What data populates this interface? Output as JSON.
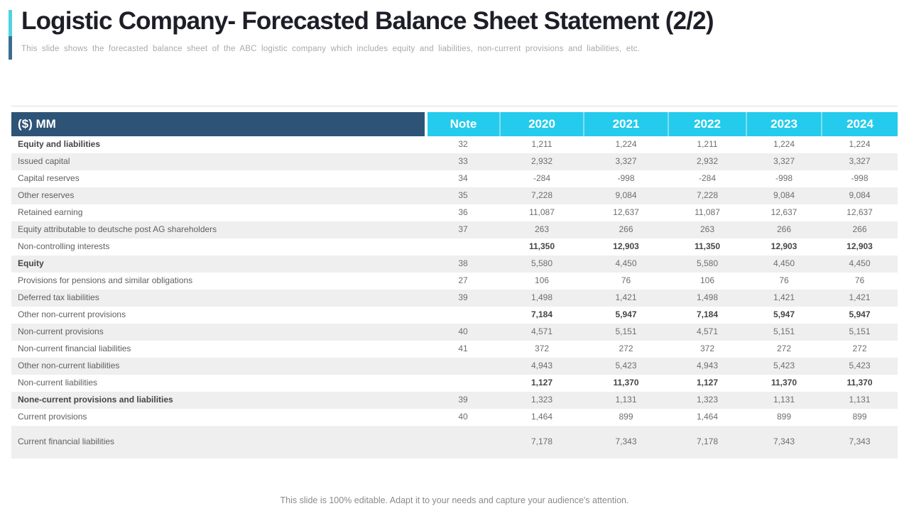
{
  "slide": {
    "title": "Logistic Company- Forecasted Balance Sheet Statement (2/2)",
    "subtitle": "This slide shows the forecasted  balance  sheet of the ABC logistic  company  which  includes equity and  liabilities, non-current  provisions  and liabilities, etc.",
    "footer": "This slide is 100% editable. Adapt it to your needs and capture your audience's attention."
  },
  "colors": {
    "header_navy": "#2d5477",
    "header_cyan": "#25cbec",
    "row_stripe": "#efefef",
    "accent_bar_top": "#4fd4de",
    "accent_bar_bottom": "#3a6e90"
  },
  "table": {
    "unit_label": "($) MM",
    "columns": [
      "Note",
      "2020",
      "2021",
      "2022",
      "2023",
      "2024"
    ],
    "rows": [
      {
        "label": "Equity and liabilities",
        "label_bold": true,
        "note": "32",
        "values": [
          "1,211",
          "1,224",
          "1,211",
          "1,224",
          "1,224"
        ]
      },
      {
        "label": "Issued capital",
        "note": "33",
        "values": [
          "2,932",
          "3,327",
          "2,932",
          "3,327",
          "3,327"
        ]
      },
      {
        "label": "Capital reserves",
        "note": "34",
        "values": [
          "-284",
          "-998",
          "-284",
          "-998",
          "-998"
        ]
      },
      {
        "label": "Other reserves",
        "note": "35",
        "values": [
          "7,228",
          "9,084",
          "7,228",
          "9,084",
          "9,084"
        ]
      },
      {
        "label": "Retained earning",
        "note": "36",
        "values": [
          "11,087",
          "12,637",
          "11,087",
          "12,637",
          "12,637"
        ]
      },
      {
        "label": "Equity attributable to deutsche post AG shareholders",
        "note": "37",
        "values": [
          "263",
          "266",
          "263",
          "266",
          "266"
        ]
      },
      {
        "label": "Non-controlling interests",
        "note": "",
        "values_bold": true,
        "values": [
          "11,350",
          "12,903",
          "11,350",
          "12,903",
          "12,903"
        ]
      },
      {
        "label": "Equity",
        "label_bold": true,
        "note": "38",
        "values": [
          "5,580",
          "4,450",
          "5,580",
          "4,450",
          "4,450"
        ]
      },
      {
        "label": "Provisions for pensions and similar obligations",
        "note": "27",
        "values": [
          "106",
          "76",
          "106",
          "76",
          "76"
        ]
      },
      {
        "label": "Deferred tax liabilities",
        "note": "39",
        "values": [
          "1,498",
          "1,421",
          "1,498",
          "1,421",
          "1,421"
        ]
      },
      {
        "label": "Other non-current provisions",
        "note": "",
        "values_bold": true,
        "values": [
          "7,184",
          "5,947",
          "7,184",
          "5,947",
          "5,947"
        ]
      },
      {
        "label": "Non-current provisions",
        "note": "40",
        "values": [
          "4,571",
          "5,151",
          "4,571",
          "5,151",
          "5,151"
        ]
      },
      {
        "label": "Non-current financial liabilities",
        "note": "41",
        "values": [
          "372",
          "272",
          "372",
          "272",
          "272"
        ]
      },
      {
        "label": "Other non-current liabilities",
        "note": "",
        "values": [
          "4,943",
          "5,423",
          "4,943",
          "5,423",
          "5,423"
        ]
      },
      {
        "label": "Non-current liabilities",
        "note": "",
        "values_bold": true,
        "values": [
          "1,127",
          "11,370",
          "1,127",
          "11,370",
          "11,370"
        ]
      },
      {
        "label": "None-current provisions and liabilities",
        "label_bold": true,
        "note": "39",
        "values": [
          "1,323",
          "1,131",
          "1,323",
          "1,131",
          "1,131"
        ]
      },
      {
        "label": "Current provisions",
        "note": "40",
        "values": [
          "1,464",
          "899",
          "1,464",
          "899",
          "899"
        ]
      },
      {
        "label": "Current financial liabilities",
        "note": "",
        "tall": true,
        "values": [
          "7,178",
          "7,343",
          "7,178",
          "7,343",
          "7,343"
        ]
      }
    ]
  }
}
